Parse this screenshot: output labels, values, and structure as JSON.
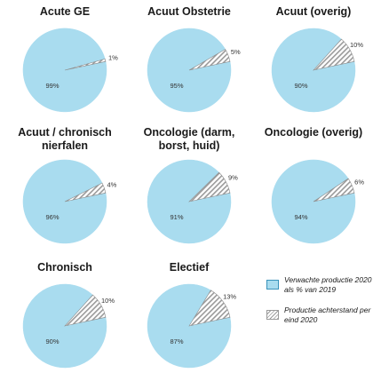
{
  "chart_data": [
    {
      "type": "pie",
      "title": "Acute GE",
      "slices": [
        {
          "label": "99%",
          "value": 99
        },
        {
          "label": "1%",
          "value": 1
        }
      ]
    },
    {
      "type": "pie",
      "title": "Acuut Obstetrie",
      "slices": [
        {
          "label": "95%",
          "value": 95
        },
        {
          "label": "5%",
          "value": 5
        }
      ]
    },
    {
      "type": "pie",
      "title": "Acuut (overig)",
      "slices": [
        {
          "label": "90%",
          "value": 90
        },
        {
          "label": "10%",
          "value": 10
        }
      ]
    },
    {
      "type": "pie",
      "title": "Acuut / chronisch nierfalen",
      "slices": [
        {
          "label": "96%",
          "value": 96
        },
        {
          "label": "4%",
          "value": 4
        }
      ]
    },
    {
      "type": "pie",
      "title": "Oncologie (darm, borst, huid)",
      "slices": [
        {
          "label": "91%",
          "value": 91
        },
        {
          "label": "9%",
          "value": 9
        }
      ]
    },
    {
      "type": "pie",
      "title": "Oncologie (overig)",
      "slices": [
        {
          "label": "94%",
          "value": 94
        },
        {
          "label": "6%",
          "value": 6
        }
      ]
    },
    {
      "type": "pie",
      "title": "Chronisch",
      "slices": [
        {
          "label": "90%",
          "value": 90
        },
        {
          "label": "10%",
          "value": 10
        }
      ]
    },
    {
      "type": "pie",
      "title": "Electief",
      "slices": [
        {
          "label": "87%",
          "value": 87
        },
        {
          "label": "13%",
          "value": 13
        }
      ]
    }
  ],
  "legend": {
    "items": [
      {
        "label": "Verwachte productie 2020 als % van 2019",
        "style": "solid"
      },
      {
        "label": "Productie achterstand per eind 2020",
        "style": "hatched"
      }
    ]
  },
  "colors": {
    "expected_fill": "#a9dcef",
    "expected_stroke": "#3a93bb",
    "backlog_hatch": "#9a9a9a",
    "backlog_fill": "#ffffff"
  }
}
